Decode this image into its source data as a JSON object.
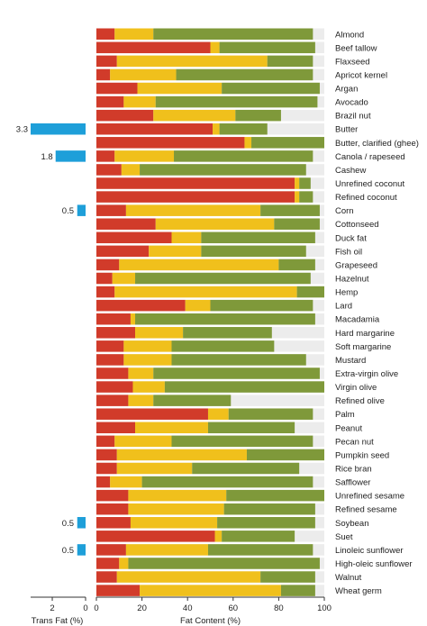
{
  "chart_data": [
    {
      "type": "bar",
      "orientation": "horizontal-stacked",
      "xlabel": "Fat Content (%)",
      "xlim": [
        0,
        100
      ],
      "xticks": [
        "0",
        "20",
        "40",
        "60",
        "80",
        "100"
      ],
      "segment_colors": {
        "saturated": "#d13b2a",
        "monounsaturated": "#f0c01c",
        "polyunsaturated": "#7f993a",
        "remainder": "#ececec"
      },
      "categories": [
        "Almond",
        "Beef tallow",
        "Flaxseed",
        "Apricot kernel",
        "Argan",
        "Avocado",
        "Brazil nut",
        "Butter",
        "Butter, clarified (ghee)",
        "Canola / rapeseed",
        "Cashew",
        "Unrefined coconut",
        "Refined coconut",
        "Corn",
        "Cottonseed",
        "Duck fat",
        "Fish oil",
        "Grapeseed",
        "Hazelnut",
        "Hemp",
        "Lard",
        "Macadamia",
        "Hard margarine",
        "Soft margarine",
        "Mustard",
        "Extra-virgin olive",
        "Virgin olive",
        "Refined olive",
        "Palm",
        "Peanut",
        "Pecan nut",
        "Pumpkin seed",
        "Rice bran",
        "Safflower",
        "Unrefined sesame",
        "Refined sesame",
        "Soybean",
        "Suet",
        "Linoleic sunflower",
        "High-oleic sunflower",
        "Walnut",
        "Wheat germ"
      ],
      "series": [
        {
          "values": [
            8,
            50,
            9,
            6,
            18,
            12,
            25,
            51,
            65,
            8,
            11,
            87,
            87,
            13,
            26,
            33,
            23,
            10,
            7,
            8,
            39,
            15,
            17,
            12,
            12,
            14,
            16,
            14,
            49,
            17,
            8,
            9,
            9,
            6,
            14,
            14,
            15,
            52,
            13,
            10,
            9,
            19
          ]
        },
        {
          "values": [
            17,
            4,
            66,
            29,
            37,
            14,
            36,
            3,
            3,
            26,
            8,
            2,
            2,
            59,
            52,
            13,
            23,
            70,
            10,
            80,
            11,
            2,
            21,
            21,
            21,
            11,
            14,
            11,
            9,
            32,
            25,
            57,
            33,
            14,
            43,
            42,
            38,
            3,
            36,
            4,
            63,
            62
          ]
        },
        {
          "values": [
            70,
            42,
            20,
            60,
            43,
            71,
            20,
            21,
            32,
            61,
            73,
            5,
            6,
            26,
            20,
            50,
            46,
            16,
            77,
            12,
            45,
            79,
            39,
            45,
            59,
            73,
            70,
            34,
            37,
            38,
            62,
            34,
            47,
            75,
            43,
            40,
            43,
            32,
            46,
            84,
            24,
            15
          ]
        }
      ]
    },
    {
      "type": "bar",
      "orientation": "horizontal-left",
      "xlabel": "Trans Fat (%)",
      "xlim": [
        0,
        3.3
      ],
      "xticks": [
        "2",
        "0"
      ],
      "color": "#1e9fd9",
      "bars": [
        {
          "index": 7,
          "value": 3.3,
          "label": "3.3"
        },
        {
          "index": 9,
          "value": 1.8,
          "label": "1.8"
        },
        {
          "index": 13,
          "value": 0.5,
          "label": "0.5"
        },
        {
          "index": 36,
          "value": 0.5,
          "label": "0.5"
        },
        {
          "index": 38,
          "value": 0.5,
          "label": "0.5"
        }
      ]
    }
  ]
}
